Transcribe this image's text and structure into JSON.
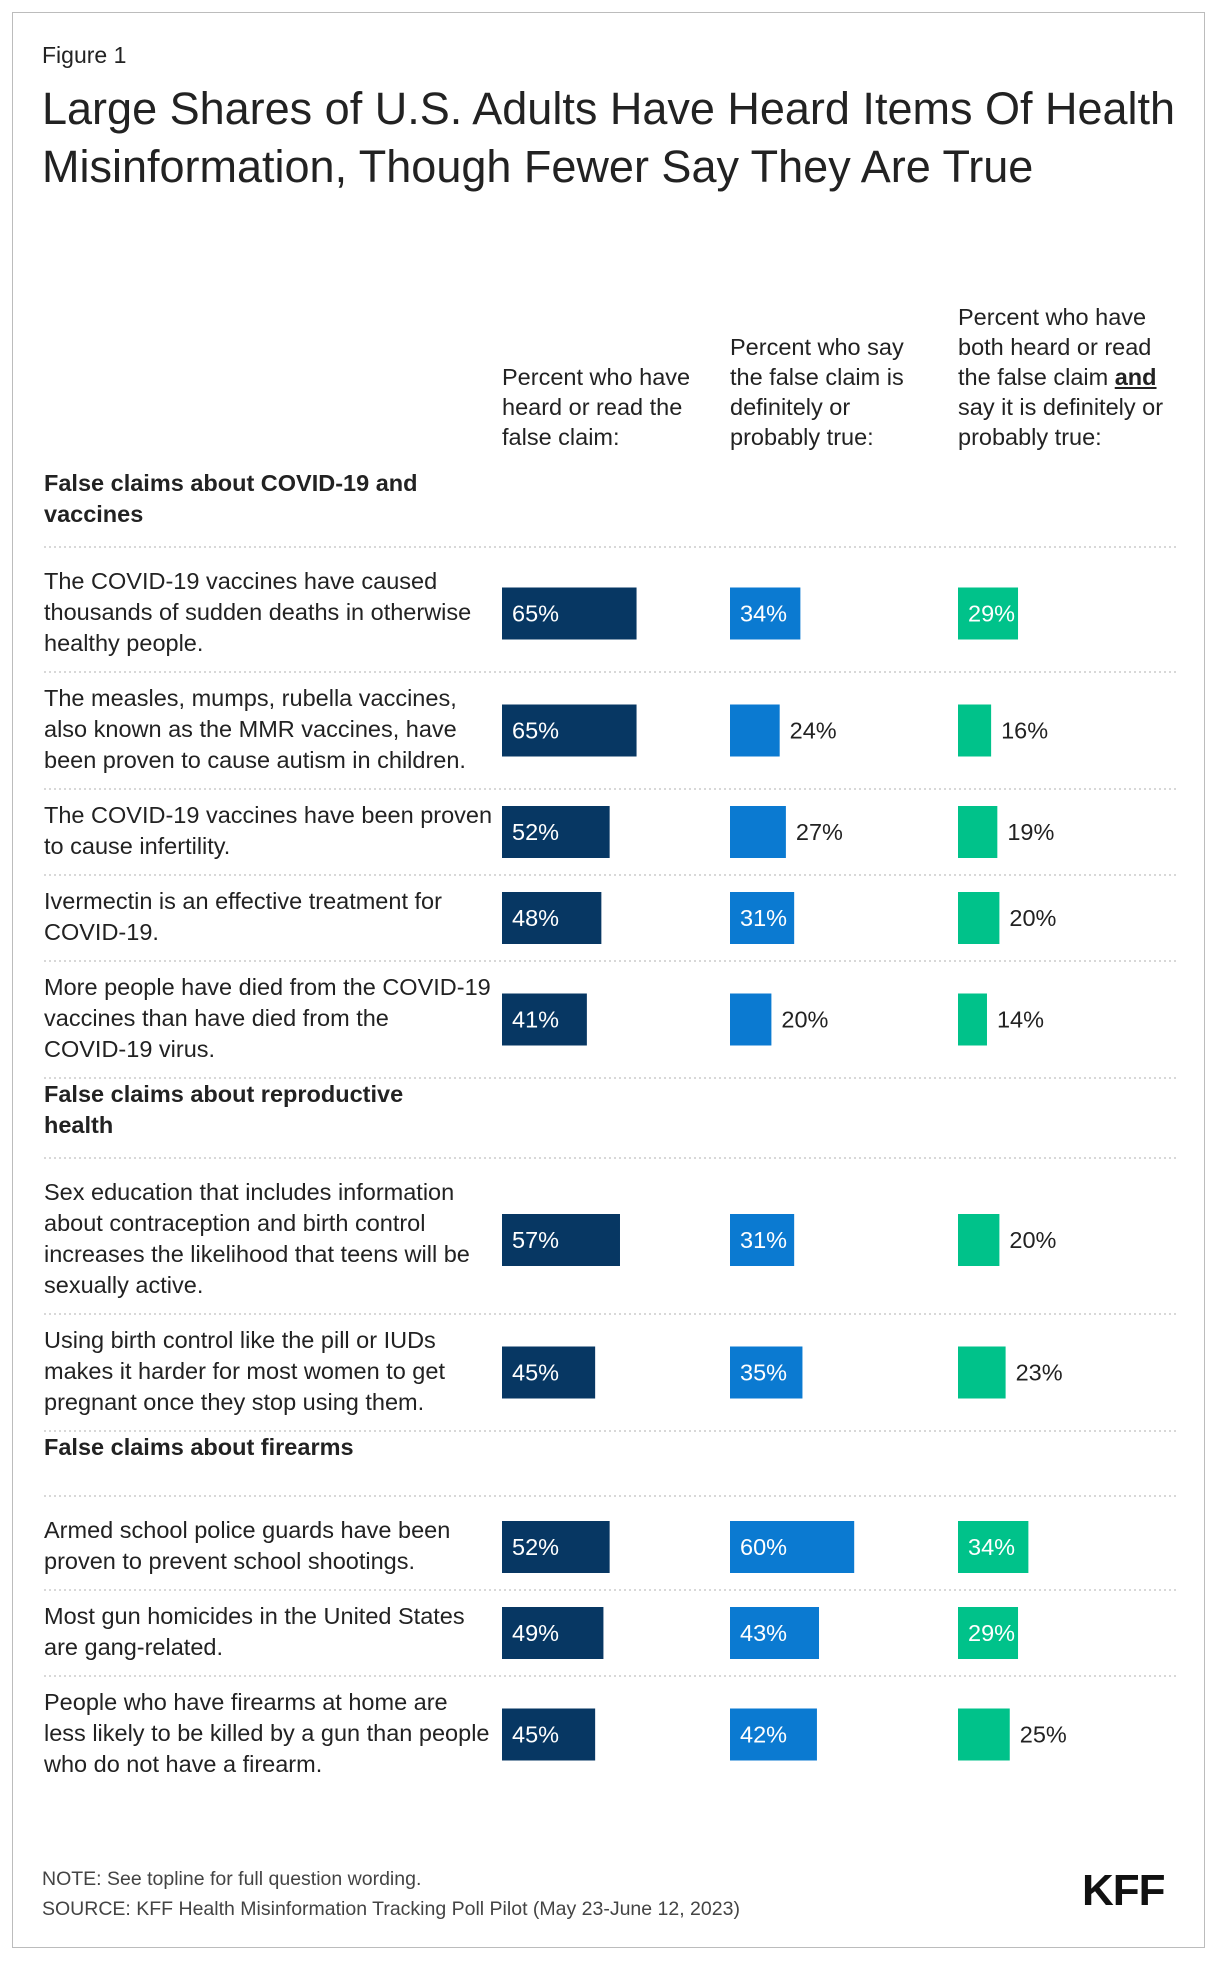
{
  "figure_label": "Figure 1",
  "title": "Large Shares of U.S. Adults Have Heard Items Of Health Misinformation, Though Fewer Say They Are True",
  "note": "NOTE: See topline for full question wording.",
  "source": "SOURCE: KFF Health Misinformation Tracking Poll Pilot (May 23-June 12, 2023)",
  "logo": "KFF",
  "column_headers": {
    "heard": "Percent who have heard or read the false claim:",
    "true": "Percent who say the false claim is definitely or probably true:",
    "both_pre": "Percent who have both heard or read the false claim ",
    "both_bold": "and",
    "both_post": " say it is definitely or probably true:"
  },
  "colors": {
    "heard": "#073763",
    "true": "#0b7ad1",
    "both": "#00c28a",
    "text": "#222222",
    "divider": "#cccccc"
  },
  "chart_data": {
    "type": "table",
    "value_format": "percent",
    "series": [
      {
        "key": "heard",
        "name": "Percent who have heard or read the false claim:"
      },
      {
        "key": "true",
        "name": "Percent who say the false claim is definitely or probably true:"
      },
      {
        "key": "both",
        "name": "Percent who have both heard or read the false claim and say it is definitely or probably true:"
      }
    ],
    "sections": [
      {
        "title": "False claims about COVID-19 and vaccines",
        "rows": [
          {
            "label": "The COVID-19 vaccines have caused thousands of sudden deaths in otherwise healthy people.",
            "heard": 65,
            "true": 34,
            "both": 29
          },
          {
            "label": "The measles, mumps, rubella vaccines, also known as the MMR vaccines, have been proven to cause autism in children.",
            "heard": 65,
            "true": 24,
            "both": 16
          },
          {
            "label": "The COVID-19 vaccines have been proven to cause infertility.",
            "heard": 52,
            "true": 27,
            "both": 19
          },
          {
            "label": "Ivermectin is an effective treatment for COVID-19.",
            "heard": 48,
            "true": 31,
            "both": 20
          },
          {
            "label": "More people have died from the COVID-19 vaccines than have died from the COVID-19 virus.",
            "heard": 41,
            "true": 20,
            "both": 14
          }
        ]
      },
      {
        "title": "False claims about reproductive health",
        "rows": [
          {
            "label": "Sex education that includes information about contraception and birth control increases the likelihood that teens will be sexually active.",
            "heard": 57,
            "true": 31,
            "both": 20
          },
          {
            "label": "Using birth control like the pill or IUDs makes it harder for most women to get pregnant once they stop using them.",
            "heard": 45,
            "true": 35,
            "both": 23
          }
        ]
      },
      {
        "title": "False claims about firearms",
        "rows": [
          {
            "label": "Armed school police guards have been proven to prevent school shootings.",
            "heard": 52,
            "true": 60,
            "both": 34
          },
          {
            "label": "Most gun homicides in the United States are gang-related.",
            "heard": 49,
            "true": 43,
            "both": 29
          },
          {
            "label": "People who have firearms at home are less likely to be killed by a gun than people who do not have a firearm.",
            "heard": 45,
            "true": 42,
            "both": 25
          }
        ]
      }
    ]
  }
}
